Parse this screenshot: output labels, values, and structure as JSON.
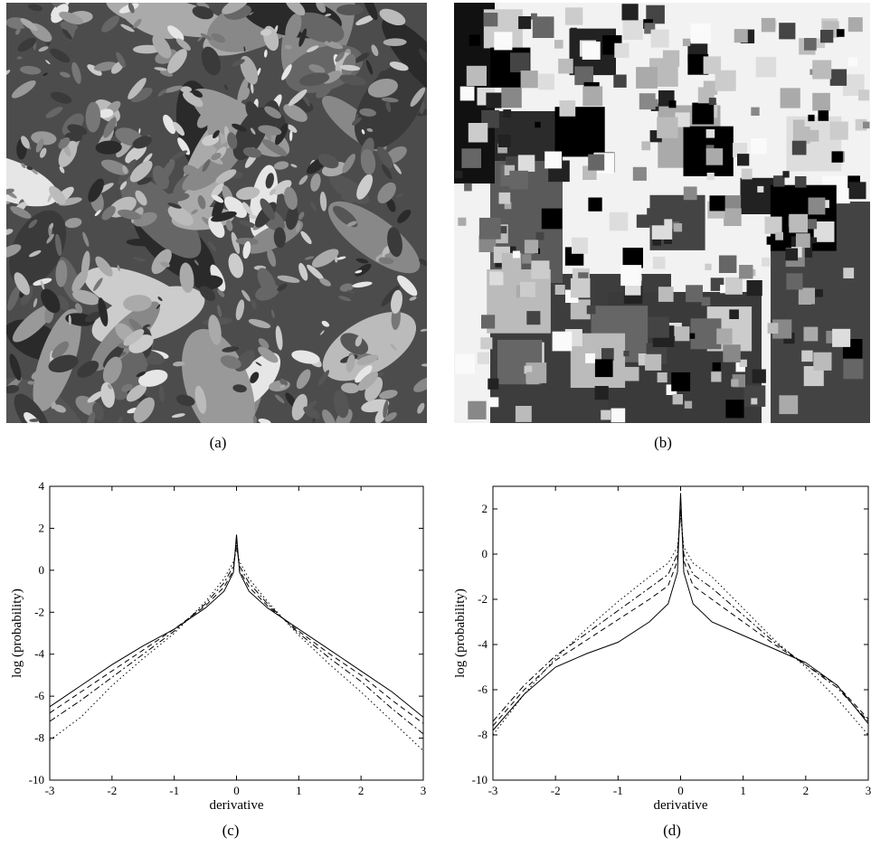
{
  "panels": {
    "a": {
      "caption": "(a)"
    },
    "b": {
      "caption": "(b)"
    },
    "c": {
      "caption": "(c)"
    },
    "d": {
      "caption": "(d)"
    }
  },
  "chart_data": [
    {
      "panel": "c",
      "type": "line",
      "xlabel": "derivative",
      "ylabel": "log (probability)",
      "xlim": [
        -3,
        3
      ],
      "ylim": [
        -10,
        4
      ],
      "xticks": [
        "-3",
        "-2",
        "-1",
        "0",
        "1",
        "2",
        "3"
      ],
      "yticks": [
        "-10",
        "-8",
        "-6",
        "-4",
        "-2",
        "0",
        "2",
        "4"
      ],
      "grid": false,
      "series": [
        {
          "style": "solid",
          "x": [
            -3,
            -2.5,
            -2,
            -1.5,
            -1,
            -0.5,
            -0.2,
            -0.05,
            0,
            0.05,
            0.2,
            0.5,
            1,
            1.5,
            2,
            2.5,
            3
          ],
          "y": [
            -6.5,
            -5.5,
            -4.5,
            -3.6,
            -2.8,
            -1.8,
            -1.0,
            -0.1,
            1.7,
            -0.1,
            -1.0,
            -1.8,
            -2.8,
            -3.8,
            -4.8,
            -5.8,
            -7.0
          ]
        },
        {
          "style": "dashed",
          "x": [
            -3,
            -2.5,
            -2,
            -1.5,
            -1,
            -0.5,
            -0.2,
            -0.05,
            0,
            0.05,
            0.2,
            0.5,
            1,
            1.5,
            2,
            2.5,
            3
          ],
          "y": [
            -6.8,
            -5.8,
            -4.8,
            -3.8,
            -2.8,
            -1.7,
            -0.8,
            0.0,
            1.4,
            0.0,
            -0.8,
            -1.7,
            -2.9,
            -4.0,
            -5.0,
            -6.2,
            -7.3
          ]
        },
        {
          "style": "dashdot",
          "x": [
            -3,
            -2.5,
            -2,
            -1.5,
            -1,
            -0.5,
            -0.2,
            -0.05,
            0,
            0.05,
            0.2,
            0.5,
            1,
            1.5,
            2,
            2.5,
            3
          ],
          "y": [
            -7.2,
            -6.2,
            -5.1,
            -4.0,
            -2.9,
            -1.6,
            -0.6,
            0.2,
            1.2,
            0.2,
            -0.6,
            -1.6,
            -3.0,
            -4.2,
            -5.3,
            -6.6,
            -7.8
          ]
        },
        {
          "style": "dotted",
          "x": [
            -3,
            -2.5,
            -2,
            -1.5,
            -1,
            -0.5,
            -0.2,
            -0.05,
            0,
            0.05,
            0.2,
            0.5,
            1,
            1.5,
            2,
            2.5,
            3
          ],
          "y": [
            -8.1,
            -7.0,
            -5.5,
            -4.2,
            -3.0,
            -1.5,
            -0.4,
            0.4,
            1.0,
            0.4,
            -0.4,
            -1.5,
            -3.1,
            -4.5,
            -5.8,
            -7.2,
            -8.6
          ]
        }
      ]
    },
    {
      "panel": "d",
      "type": "line",
      "xlabel": "derivative",
      "ylabel": "log (probability)",
      "xlim": [
        -3,
        3
      ],
      "ylim": [
        -10,
        3
      ],
      "xticks": [
        "-3",
        "-2",
        "-1",
        "0",
        "1",
        "2",
        "3"
      ],
      "yticks": [
        "-10",
        "-8",
        "-6",
        "-4",
        "-2",
        "0",
        "2"
      ],
      "grid": false,
      "series": [
        {
          "style": "solid",
          "x": [
            -3,
            -2.5,
            -2,
            -1.5,
            -1,
            -0.5,
            -0.2,
            -0.05,
            0,
            0.05,
            0.2,
            0.5,
            1,
            1.5,
            2,
            2.5,
            3
          ],
          "y": [
            -7.8,
            -6.2,
            -5.0,
            -4.4,
            -3.9,
            -3.0,
            -2.2,
            -0.8,
            2.7,
            -0.8,
            -2.2,
            -3.0,
            -3.6,
            -4.2,
            -4.8,
            -5.8,
            -7.5
          ]
        },
        {
          "style": "dashed",
          "x": [
            -3,
            -2.5,
            -2,
            -1.5,
            -1,
            -0.5,
            -0.2,
            -0.05,
            0,
            0.05,
            0.2,
            0.5,
            1,
            1.5,
            2,
            2.5,
            3
          ],
          "y": [
            -7.6,
            -6.0,
            -4.7,
            -3.8,
            -2.9,
            -2.0,
            -1.4,
            -0.3,
            2.3,
            -0.3,
            -1.4,
            -2.0,
            -3.0,
            -4.0,
            -4.9,
            -5.8,
            -7.3
          ]
        },
        {
          "style": "dashdot",
          "x": [
            -3,
            -2.5,
            -2,
            -1.5,
            -1,
            -0.5,
            -0.2,
            -0.05,
            0,
            0.05,
            0.2,
            0.5,
            1,
            1.5,
            2,
            2.5,
            3
          ],
          "y": [
            -7.4,
            -5.8,
            -4.5,
            -3.5,
            -2.5,
            -1.5,
            -0.9,
            0.0,
            2.0,
            0.0,
            -0.9,
            -1.5,
            -2.7,
            -3.9,
            -4.9,
            -5.9,
            -7.4
          ]
        },
        {
          "style": "dotted",
          "x": [
            -3,
            -2.5,
            -2,
            -1.5,
            -1,
            -0.5,
            -0.2,
            -0.05,
            0,
            0.05,
            0.2,
            0.5,
            1,
            1.5,
            2,
            2.5,
            3
          ],
          "y": [
            -8.0,
            -6.2,
            -4.6,
            -3.3,
            -2.1,
            -1.0,
            -0.4,
            0.3,
            1.6,
            0.3,
            -0.4,
            -1.0,
            -2.4,
            -3.8,
            -5.0,
            -6.4,
            -8.0
          ]
        }
      ]
    }
  ]
}
